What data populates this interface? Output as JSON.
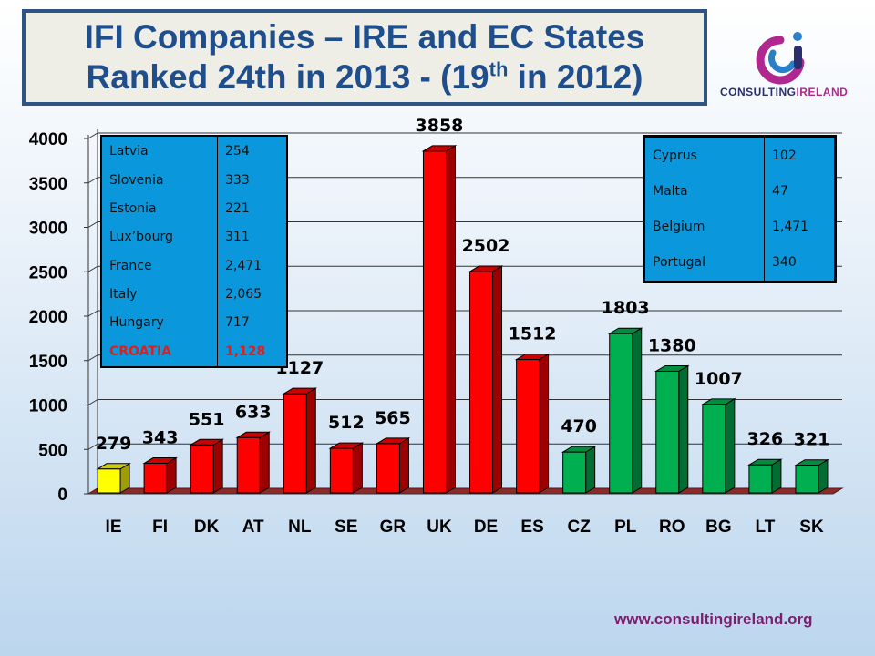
{
  "header": {
    "title_line1": "IFI Companies – IRE and EC States",
    "title_line2_prefix": "Ranked 24th in 2013 - (19",
    "title_line2_sup": "th",
    "title_line2_suffix": " in 2012)"
  },
  "logo": {
    "text_part1": "CONSULTING",
    "text_part2": "IRELAND",
    "colors": {
      "purple": "#b0278f",
      "blue": "#2a7fc9",
      "navy": "#2a2f6e"
    }
  },
  "chart_data": {
    "type": "bar",
    "categories": [
      "IE",
      "FI",
      "DK",
      "AT",
      "NL",
      "SE",
      "GR",
      "UK",
      "DE",
      "ES",
      "CZ",
      "PL",
      "RO",
      "BG",
      "LT",
      "SK"
    ],
    "values": [
      279,
      343,
      551,
      633,
      1127,
      512,
      565,
      3858,
      2502,
      1512,
      470,
      1803,
      1380,
      1007,
      326,
      321
    ],
    "labels": [
      "279",
      "343",
      "551",
      "633",
      "1127",
      "512",
      "565",
      "3858",
      "2502",
      "1512",
      "470",
      "1803",
      "1380",
      "1007",
      "326",
      "321"
    ],
    "bar_colors": [
      "#ffff00",
      "#ff0000",
      "#ff0000",
      "#ff0000",
      "#ff0000",
      "#ff0000",
      "#ff0000",
      "#ff0000",
      "#ff0000",
      "#ff0000",
      "#00b050",
      "#00b050",
      "#00b050",
      "#00b050",
      "#00b050",
      "#00b050"
    ],
    "ylim": [
      0,
      4000
    ],
    "yticks": [
      "0",
      "500",
      "1000",
      "1500",
      "2000",
      "2500",
      "3000",
      "3500",
      "4000"
    ],
    "ytick_values": [
      0,
      500,
      1000,
      1500,
      2000,
      2500,
      3000,
      3500,
      4000
    ],
    "grid": true,
    "style": "3d-column",
    "title": "",
    "xlabel": "",
    "ylabel": ""
  },
  "table_left": {
    "rows": [
      {
        "name": "Latvia",
        "value": "254"
      },
      {
        "name": "Slovenia",
        "value": "333"
      },
      {
        "name": "Estonia",
        "value": "221"
      },
      {
        "name": "Lux’bourg",
        "value": "311"
      },
      {
        "name": "France",
        "value": "2,471"
      },
      {
        "name": "Italy",
        "value": "2,065"
      },
      {
        "name": "Hungary",
        "value": "717"
      },
      {
        "name": "CROATIA",
        "value": "1,128",
        "highlight": true
      }
    ]
  },
  "table_right": {
    "rows": [
      {
        "name": "Cyprus",
        "value": "102"
      },
      {
        "name": "Malta",
        "value": "47"
      },
      {
        "name": "Belgium",
        "value": "1,471"
      },
      {
        "name": "Portugal",
        "value": "340"
      }
    ]
  },
  "footer": {
    "website": "www.consultingireland.org"
  }
}
